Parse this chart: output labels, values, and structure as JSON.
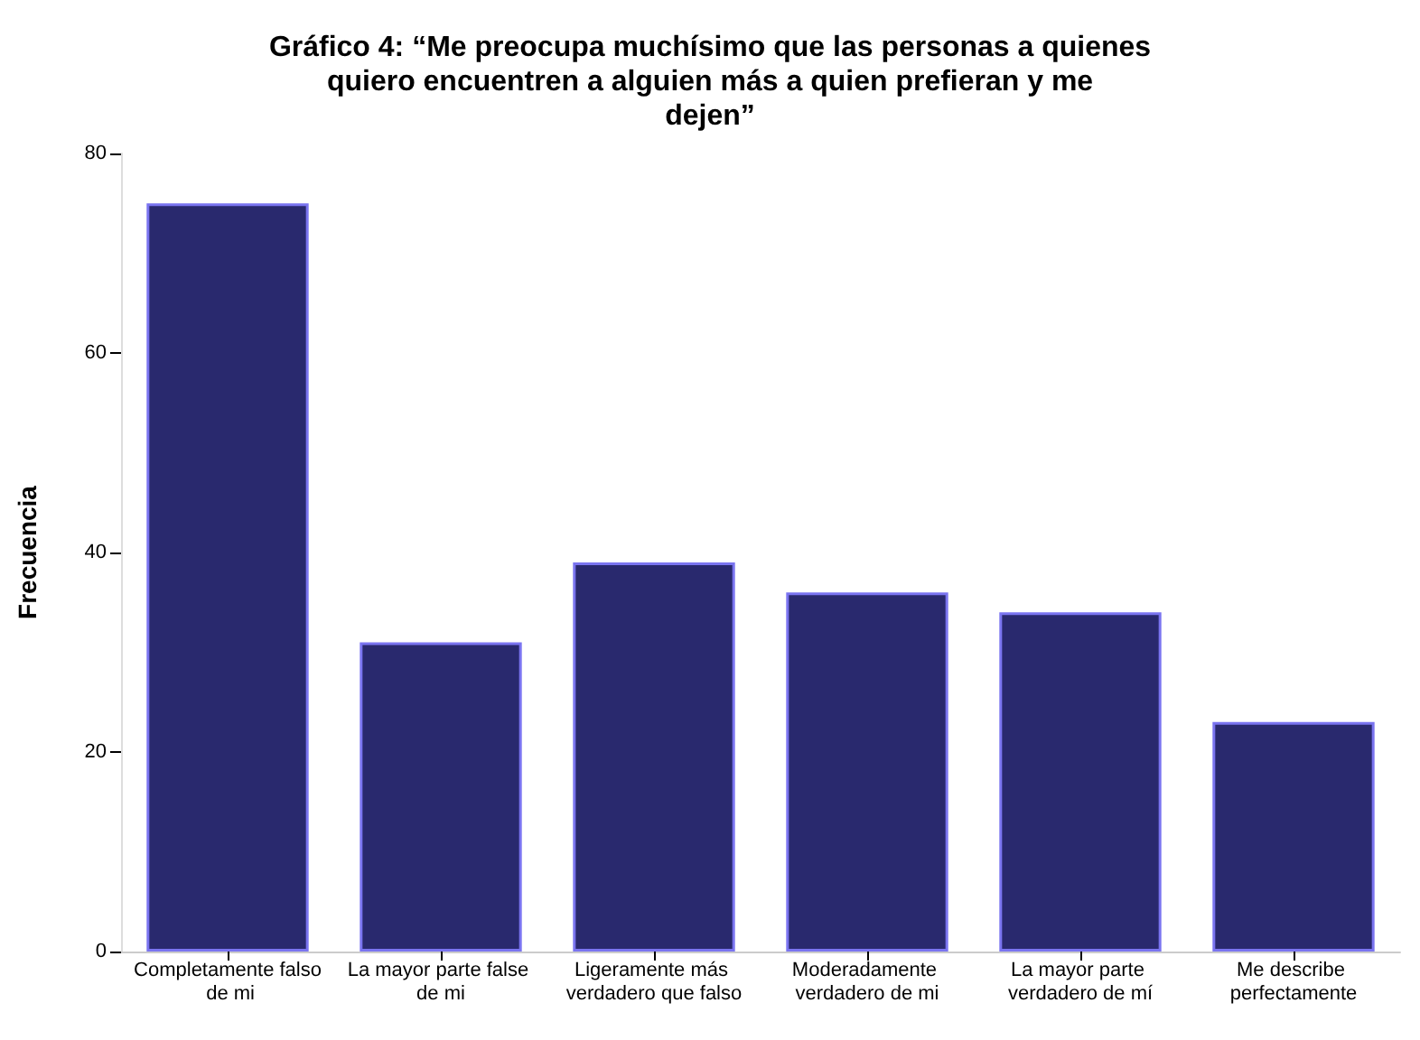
{
  "chart_data": {
    "type": "bar",
    "title": "Gráfico 4: “Me preocupa muchísimo que las personas a quienes quiero encuentren a alguien más a quien prefieran y me dejen”",
    "ylabel": "Frecuencia",
    "categories": [
      "Completamente falso de mi",
      "La mayor parte false de mi",
      "Ligeramente más verdadero que falso",
      "Moderadamente verdadero de mi",
      "La mayor parte verdadero de mí",
      "Me describe perfectamente"
    ],
    "values": [
      75,
      31,
      39,
      36,
      34,
      23
    ],
    "color": "#29296e",
    "ylim": [
      0,
      80
    ],
    "yticks": [
      0,
      20,
      40,
      60,
      80
    ],
    "grid": false
  }
}
